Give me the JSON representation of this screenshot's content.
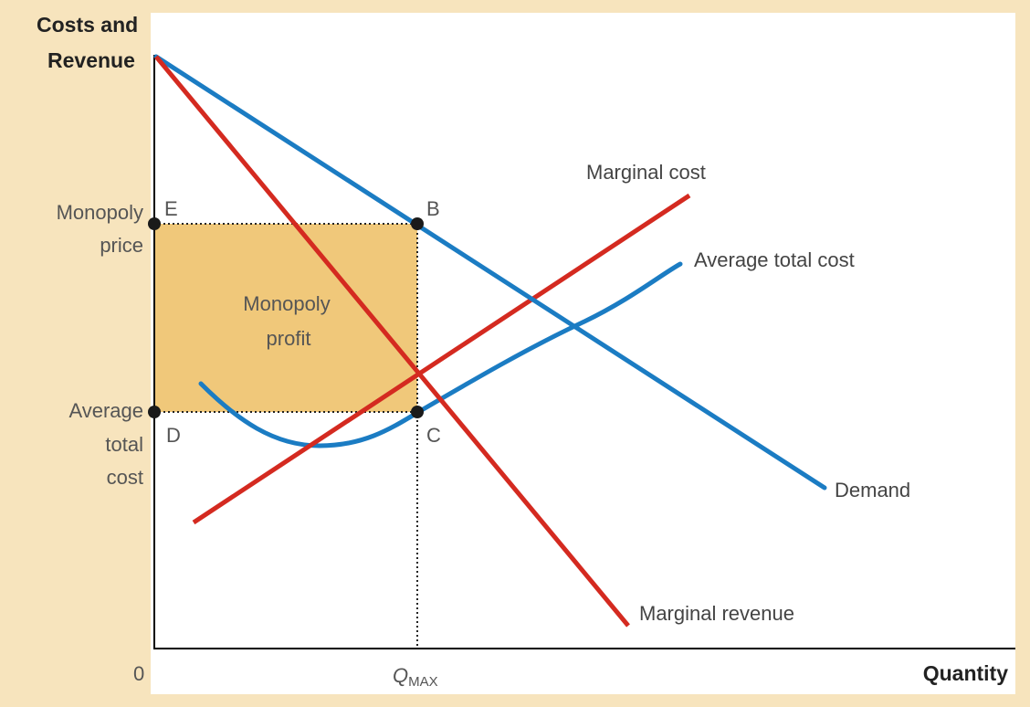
{
  "axes": {
    "y_title_line1": "Costs and",
    "y_title_line2": "Revenue",
    "x_title": "Quantity",
    "origin": "0",
    "q_main": "Q",
    "q_sub": "MAX"
  },
  "price_labels": {
    "monopoly_price_line1": "Monopoly",
    "monopoly_price_line2": "price",
    "atc_line1": "Average",
    "atc_line2": "total",
    "atc_line3": "cost"
  },
  "points": {
    "e": "E",
    "b": "B",
    "d": "D",
    "c": "C"
  },
  "curves": {
    "marginal_cost": "Marginal cost",
    "average_total_cost": "Average total cost",
    "demand": "Demand",
    "marginal_revenue": "Marginal revenue"
  },
  "profit_area": {
    "line1": "Monopoly",
    "line2": "profit"
  },
  "colors": {
    "background": "#f7e4bd",
    "profit_fill": "#f0c87a",
    "red_curves": "#d42a20",
    "blue_curves": "#1b7cc3"
  }
}
